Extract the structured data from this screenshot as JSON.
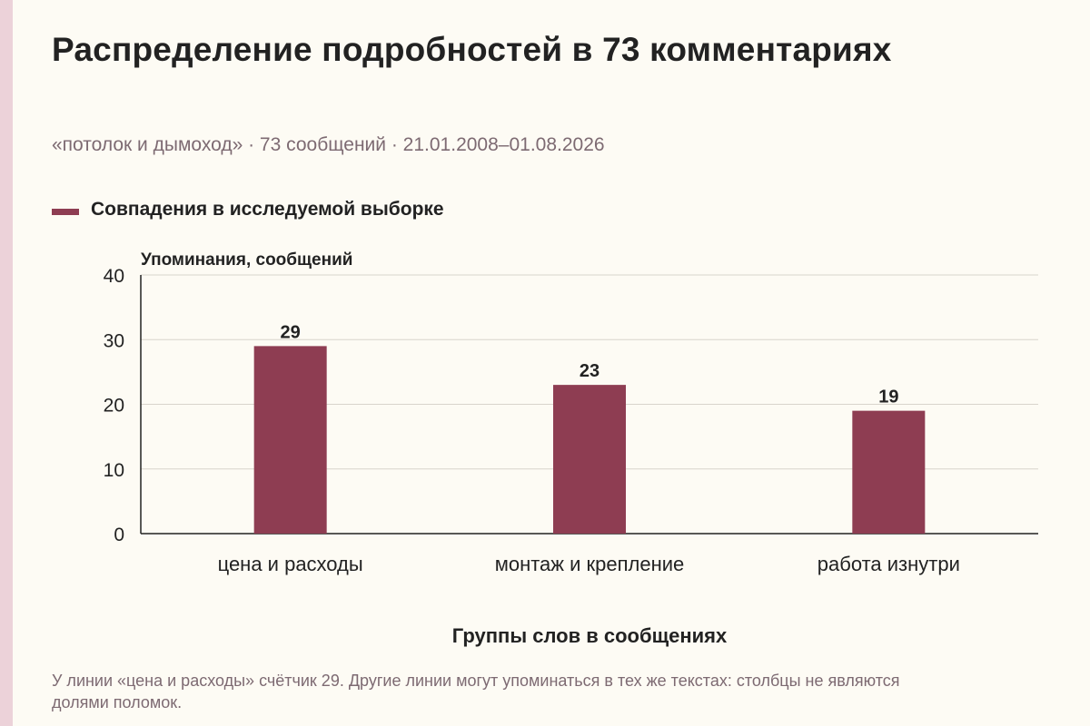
{
  "title": "Распределение подробностей в 73 комментариях",
  "subtitle": "«потолок и дымоход» · 73 сообщений · 21.01.2008–01.08.2026",
  "note": "У линии «цена и расходы» счётчик 29. Другие линии могут упоминаться в тех же текстах: столбцы не являются долями поломок.",
  "colors": {
    "bar": "#8e3d52",
    "grid": "#d8d4cc",
    "axis": "#222222",
    "background": "#fdfbf4"
  },
  "chart_data": {
    "type": "bar",
    "categories": [
      "цена и расходы",
      "монтаж и крепление",
      "работа изнутри"
    ],
    "series": [
      {
        "name": "Совпадения в исследуемой выборке",
        "values": [
          29,
          23,
          19
        ]
      }
    ],
    "xlabel": "Группы слов в сообщениях",
    "ylabel": "Упоминания, сообщений",
    "ylim": [
      0,
      40
    ],
    "yticks": [
      0,
      10,
      20,
      30,
      40
    ],
    "grid": true,
    "data_labels": true,
    "legend_position": "top-left"
  }
}
